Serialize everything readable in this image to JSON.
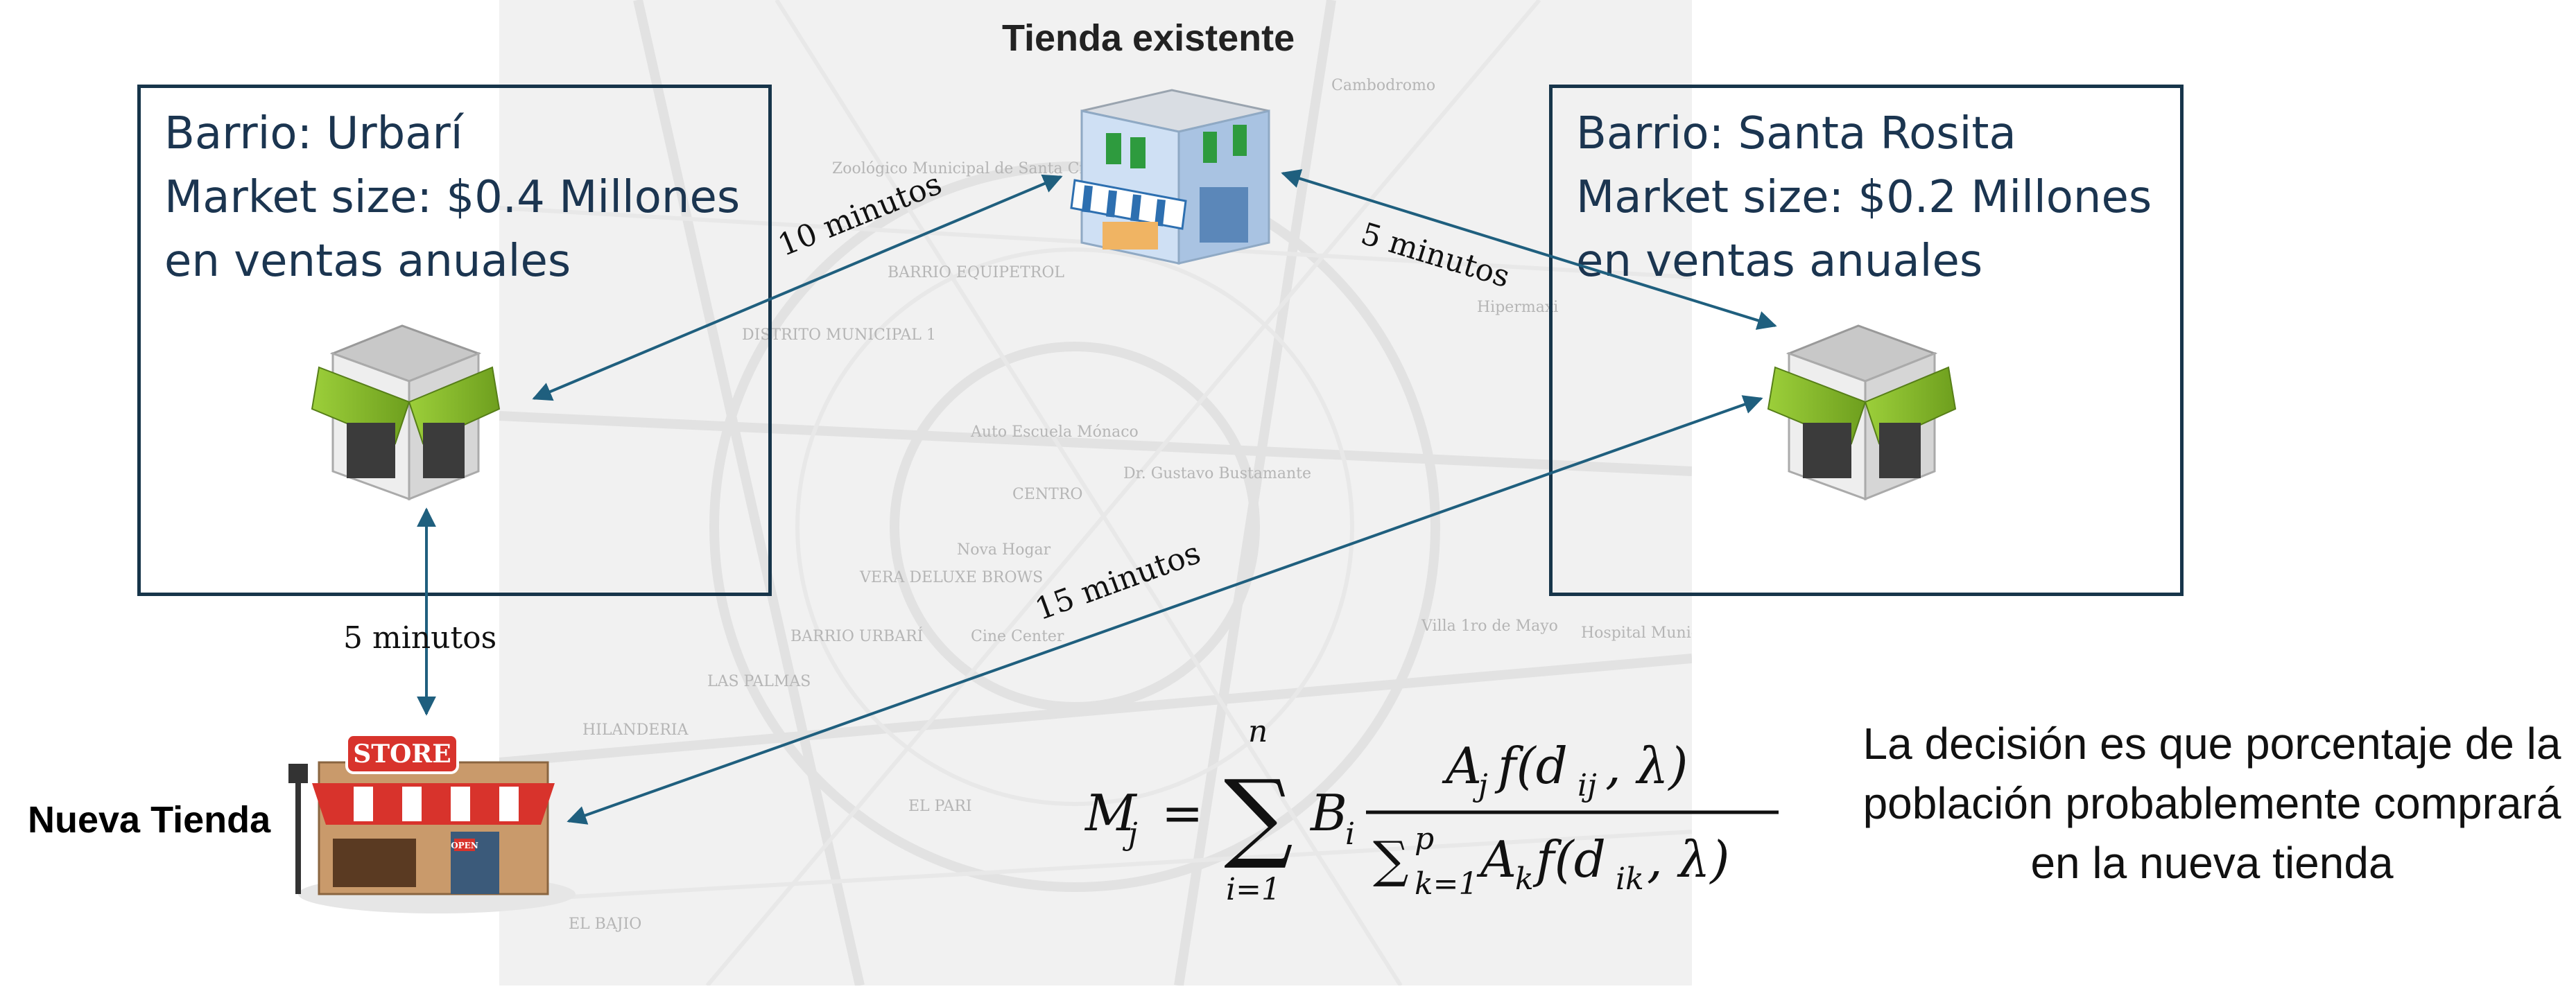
{
  "title_top": "Tienda existente",
  "new_store_label": "Nueva Tienda",
  "store_sign": "STORE",
  "open_sign": "OPEN",
  "regions": [
    {
      "line1": "Barrio: Urbarí",
      "line2": "Market size: $0.4 Millones",
      "line3": "en ventas anuales"
    },
    {
      "line1": "Barrio: Santa Rosita",
      "line2": "Market size: $0.2 Millones",
      "line3": "en ventas anuales"
    }
  ],
  "times": {
    "urbari_existing": "10 minutos",
    "existing_santa": "5 minutos",
    "urbari_new": "5 minutos",
    "new_santa": "15 minutos"
  },
  "map_labels": [
    "Cambodromo",
    "Zoológico Municipal de Santa Cruz",
    "BARRIO EQUIPETROL",
    "DISTRITO MUNICIPAL 1",
    "Auto Escuela Mónaco",
    "Dr. Gustavo Bustamante",
    "CENTRO",
    "Nova Hogar",
    "VERA DELUXE BROWS",
    "Cine Center",
    "BARRIO URBARÍ",
    "LAS PALMAS",
    "HILANDERIA",
    "EL PARI",
    "EL BAJIO",
    "Hipermaxi",
    "Villa 1ro de Mayo",
    "Hospital Municipal"
  ],
  "decision_text": "La decisión es que porcentaje de la población probablemente comprará en la nueva tienda",
  "colors": {
    "box_border": "#17354a",
    "region_text": "#1b3550",
    "arrow": "#1f5f7e"
  }
}
